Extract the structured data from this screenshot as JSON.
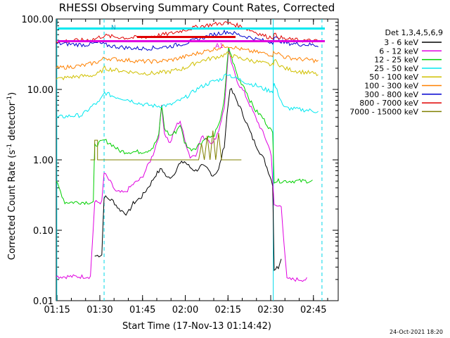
{
  "chart_data": {
    "type": "line",
    "title": "RHESSI Observing Summary Count Rates, Corrected",
    "xlabel": "Start Time (17-Nov-13 01:14:42)",
    "ylabel_main": "Corrected Count Rate (s",
    "ylabel_sup1": "-1",
    "ylabel_mid": " detector",
    "ylabel_sup2": "-1",
    "ylabel_end": ")",
    "y_scale": "log",
    "ylim": [
      0.01,
      100
    ],
    "xlim_minutes": [
      0,
      99
    ],
    "x_tick_labels": [
      "01:15",
      "01:30",
      "01:45",
      "02:00",
      "02:15",
      "02:30",
      "02:45"
    ],
    "x_tick_minutes": [
      0.3,
      15.3,
      30.3,
      45.3,
      60.3,
      75.3,
      90.3
    ],
    "y_tick_labels": [
      "0.01",
      "0.10",
      "1.00",
      "10.00",
      "100.00"
    ],
    "y_tick_values": [
      0.01,
      0.1,
      1,
      10,
      100
    ],
    "legend_header": "Det 1,3,4,5,6,9",
    "attenuator_labels": [
      "A1"
    ],
    "flag_labels": [
      "N"
    ],
    "date_stamp": "24-Oct-2021 18:20",
    "vlines_cyan_minutes": [
      0.2,
      16.8,
      76.2,
      93.3
    ],
    "series": [
      {
        "name": "3 - 6 keV",
        "color": "#000000",
        "points": [
          [
            13.5,
            0.043
          ],
          [
            16,
            0.045
          ],
          [
            16.8,
            0.3
          ],
          [
            20,
            0.26
          ],
          [
            22,
            0.2
          ],
          [
            25,
            0.17
          ],
          [
            27,
            0.24
          ],
          [
            30,
            0.3
          ],
          [
            33,
            0.45
          ],
          [
            35,
            0.62
          ],
          [
            37,
            0.75
          ],
          [
            39,
            0.55
          ],
          [
            41,
            0.6
          ],
          [
            43,
            0.85
          ],
          [
            45,
            0.95
          ],
          [
            47,
            0.78
          ],
          [
            49,
            0.7
          ],
          [
            51,
            0.82
          ],
          [
            53,
            0.75
          ],
          [
            55,
            0.6
          ],
          [
            57,
            0.72
          ],
          [
            59,
            1.6
          ],
          [
            60,
            4.5
          ],
          [
            61,
            10.5
          ],
          [
            63,
            7.5
          ],
          [
            65,
            5.0
          ],
          [
            67,
            3.2
          ],
          [
            69,
            2.0
          ],
          [
            71,
            1.4
          ],
          [
            73,
            1.0
          ],
          [
            75,
            0.6
          ],
          [
            76,
            0.45
          ],
          [
            76.5,
            0.028
          ],
          [
            78,
            0.03
          ],
          [
            79,
            0.042
          ]
        ]
      },
      {
        "name": "6 - 12 keV",
        "color": "#e000e0",
        "points": [
          [
            0,
            0.022
          ],
          [
            12,
            0.022
          ],
          [
            13.5,
            0.25
          ],
          [
            16,
            0.25
          ],
          [
            16.8,
            0.65
          ],
          [
            19,
            0.48
          ],
          [
            21,
            0.35
          ],
          [
            24,
            0.34
          ],
          [
            27,
            0.45
          ],
          [
            30,
            0.55
          ],
          [
            32,
            0.8
          ],
          [
            34,
            1.2
          ],
          [
            36,
            2.2
          ],
          [
            37,
            6.0
          ],
          [
            38,
            2.4
          ],
          [
            40,
            1.7
          ],
          [
            42,
            3.0
          ],
          [
            43.5,
            3.6
          ],
          [
            45,
            2.0
          ],
          [
            47,
            1.1
          ],
          [
            49,
            1.2
          ],
          [
            51,
            2.1
          ],
          [
            53,
            2.0
          ],
          [
            55,
            1.7
          ],
          [
            57,
            2.6
          ],
          [
            59,
            5.5
          ],
          [
            60.5,
            35
          ],
          [
            62,
            20
          ],
          [
            64,
            12
          ],
          [
            66,
            9
          ],
          [
            68,
            6
          ],
          [
            70,
            4
          ],
          [
            72,
            2.7
          ],
          [
            74,
            1.8
          ],
          [
            75.5,
            1.2
          ],
          [
            76.5,
            0.22
          ],
          [
            79,
            0.22
          ],
          [
            81,
            0.02
          ],
          [
            88,
            0.02
          ]
        ]
      },
      {
        "name": "12 - 25 keV",
        "color": "#00d000",
        "points": [
          [
            0,
            0.5
          ],
          [
            3,
            0.25
          ],
          [
            13,
            0.25
          ],
          [
            13.5,
            1.6
          ],
          [
            17,
            1.9
          ],
          [
            20,
            1.6
          ],
          [
            22,
            1.35
          ],
          [
            24,
            1.3
          ],
          [
            27,
            1.3
          ],
          [
            30,
            1.3
          ],
          [
            32,
            1.35
          ],
          [
            34,
            1.5
          ],
          [
            36,
            2.2
          ],
          [
            37,
            6.0
          ],
          [
            38,
            2.8
          ],
          [
            40,
            2.2
          ],
          [
            42,
            2.5
          ],
          [
            43.5,
            3.2
          ],
          [
            45,
            1.8
          ],
          [
            47,
            1.4
          ],
          [
            49,
            1.5
          ],
          [
            51,
            1.8
          ],
          [
            53,
            2.1
          ],
          [
            55,
            2.1
          ],
          [
            57,
            3.0
          ],
          [
            59,
            7.0
          ],
          [
            60.5,
            40
          ],
          [
            62,
            25
          ],
          [
            64,
            14
          ],
          [
            66,
            11
          ],
          [
            68,
            7
          ],
          [
            70,
            5
          ],
          [
            72,
            4.2
          ],
          [
            74,
            3.2
          ],
          [
            76,
            2.4
          ],
          [
            76.5,
            0.5
          ],
          [
            78,
            0.5
          ],
          [
            85,
            0.5
          ],
          [
            90,
            0.5
          ]
        ]
      },
      {
        "name": "25 - 50 keV",
        "color": "#00e8f0",
        "points": [
          [
            0,
            4.0
          ],
          [
            5,
            4.2
          ],
          [
            9,
            4.3
          ],
          [
            13.5,
            6.2
          ],
          [
            15,
            6.5
          ],
          [
            17,
            9.0
          ],
          [
            20,
            8.0
          ],
          [
            25,
            7.2
          ],
          [
            30,
            6.2
          ],
          [
            35,
            5.8
          ],
          [
            40,
            6.0
          ],
          [
            45,
            7.5
          ],
          [
            50,
            10.5
          ],
          [
            55,
            13
          ],
          [
            58,
            14
          ],
          [
            60,
            17
          ],
          [
            62,
            15
          ],
          [
            64,
            14
          ],
          [
            66,
            13
          ],
          [
            68,
            12
          ],
          [
            70,
            11.5
          ],
          [
            72,
            10.5
          ],
          [
            74,
            9.8
          ],
          [
            76,
            9.5
          ],
          [
            76.5,
            12
          ],
          [
            80,
            5.5
          ],
          [
            85,
            5.2
          ],
          [
            90,
            5.0
          ],
          [
            92,
            4.8
          ]
        ]
      },
      {
        "name": "50 - 100 keV",
        "color": "#d0c000",
        "points": [
          [
            0,
            14
          ],
          [
            5,
            15
          ],
          [
            10,
            15.5
          ],
          [
            13.5,
            16
          ],
          [
            15,
            17
          ],
          [
            17,
            20
          ],
          [
            20,
            19
          ],
          [
            25,
            18
          ],
          [
            30,
            17
          ],
          [
            35,
            17
          ],
          [
            40,
            18
          ],
          [
            45,
            20
          ],
          [
            50,
            25
          ],
          [
            55,
            28
          ],
          [
            58,
            30
          ],
          [
            60,
            32
          ],
          [
            62,
            30
          ],
          [
            64,
            28
          ],
          [
            66,
            27
          ],
          [
            68,
            26
          ],
          [
            70,
            25
          ],
          [
            72,
            24
          ],
          [
            74,
            23
          ],
          [
            76,
            22
          ],
          [
            76.5,
            26
          ],
          [
            80,
            20
          ],
          [
            85,
            18
          ],
          [
            90,
            17
          ],
          [
            92,
            16
          ]
        ]
      },
      {
        "name": "100 - 300 keV",
        "color": "#ff8000",
        "points": [
          [
            0,
            20
          ],
          [
            5,
            21
          ],
          [
            10,
            22
          ],
          [
            13.5,
            24
          ],
          [
            15,
            25
          ],
          [
            17,
            28
          ],
          [
            20,
            27
          ],
          [
            25,
            26
          ],
          [
            30,
            25
          ],
          [
            35,
            25
          ],
          [
            40,
            26
          ],
          [
            45,
            29
          ],
          [
            50,
            33
          ],
          [
            55,
            37
          ],
          [
            58,
            40
          ],
          [
            60,
            42
          ],
          [
            62,
            40
          ],
          [
            64,
            38
          ],
          [
            66,
            36
          ],
          [
            68,
            35
          ],
          [
            70,
            34
          ],
          [
            72,
            33
          ],
          [
            74,
            32
          ],
          [
            76,
            31
          ],
          [
            76.5,
            35
          ],
          [
            80,
            29
          ],
          [
            85,
            27
          ],
          [
            90,
            26
          ],
          [
            92,
            25
          ]
        ]
      },
      {
        "name": "300 - 800 keV",
        "color": "#0000d0",
        "points": [
          [
            0,
            45
          ],
          [
            5,
            44
          ],
          [
            10,
            43
          ],
          [
            13.5,
            45
          ],
          [
            15,
            46
          ],
          [
            17,
            43
          ],
          [
            20,
            41
          ],
          [
            25,
            39
          ],
          [
            30,
            38
          ],
          [
            35,
            39
          ],
          [
            40,
            41
          ],
          [
            45,
            45
          ],
          [
            50,
            52
          ],
          [
            55,
            60
          ],
          [
            58,
            64
          ],
          [
            60,
            66
          ],
          [
            62,
            63
          ],
          [
            64,
            60
          ],
          [
            66,
            57
          ],
          [
            68,
            55
          ],
          [
            70,
            52
          ],
          [
            72,
            50
          ],
          [
            74,
            48
          ],
          [
            76,
            47
          ],
          [
            76.5,
            55
          ],
          [
            80,
            46
          ],
          [
            85,
            44
          ],
          [
            90,
            43
          ],
          [
            92,
            42
          ]
        ]
      },
      {
        "name": "800 - 7000 keV",
        "color": "#e00000",
        "points": [
          [
            0,
            48
          ],
          [
            5,
            49
          ],
          [
            10,
            50
          ],
          [
            13.5,
            52
          ],
          [
            15,
            55
          ],
          [
            17,
            58
          ],
          [
            20,
            56
          ],
          [
            25,
            54
          ],
          [
            30,
            55
          ],
          [
            35,
            58
          ],
          [
            40,
            62
          ],
          [
            45,
            70
          ],
          [
            50,
            78
          ],
          [
            55,
            84
          ],
          [
            58,
            87
          ],
          [
            60,
            88
          ],
          [
            62,
            85
          ],
          [
            64,
            80
          ],
          [
            66,
            75
          ],
          [
            68,
            70
          ],
          [
            70,
            65
          ],
          [
            72,
            60
          ],
          [
            74,
            56
          ],
          [
            76,
            55
          ],
          [
            76.5,
            60
          ],
          [
            80,
            52
          ],
          [
            85,
            50
          ],
          [
            90,
            49
          ],
          [
            92,
            48
          ]
        ]
      },
      {
        "name": "7000 - 15000 keV",
        "color": "#808000",
        "points": [
          [
            12,
            1.0
          ],
          [
            13.5,
            1.0
          ],
          [
            13.5,
            1.9
          ],
          [
            14.5,
            1.9
          ],
          [
            14.5,
            1.0
          ],
          [
            20,
            1.0
          ],
          [
            30,
            1.0
          ],
          [
            40,
            1.0
          ],
          [
            45,
            1.0
          ],
          [
            50,
            1.0
          ],
          [
            51,
            1.7
          ],
          [
            52,
            1.0
          ],
          [
            53,
            2.2
          ],
          [
            54,
            1.0
          ],
          [
            55,
            2.6
          ],
          [
            56,
            1.0
          ],
          [
            57,
            2.4
          ],
          [
            58,
            1.0
          ],
          [
            59,
            1.0
          ],
          [
            60,
            1.0
          ],
          [
            65,
            1.0
          ]
        ]
      }
    ]
  }
}
